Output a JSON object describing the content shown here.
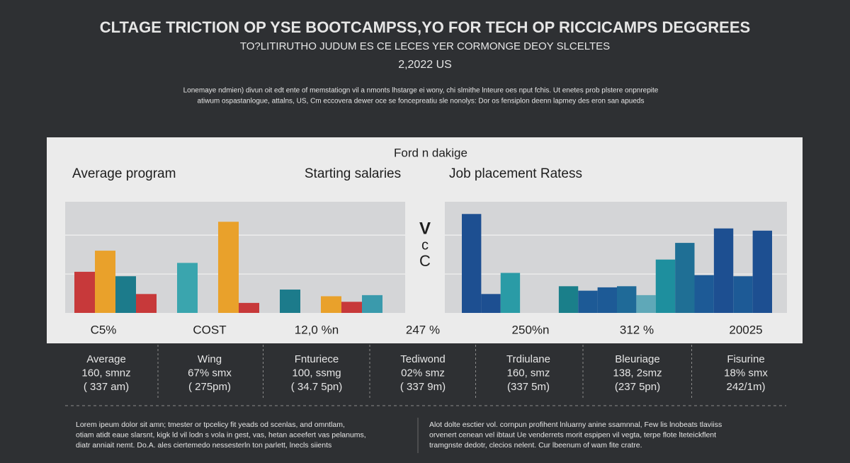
{
  "header": {
    "title": "CLTAGE TRICTION OP YSE BOOTCAMPSS,YO FOR TECH OP RICCICAMPS DEGGREES",
    "subtitle": "TO?LITIRUTHO JUDUM ES CE LECES YER CORMONGE DEOY SLCELTES",
    "date": "2,2022 US",
    "intro": [
      "Lonemaye ndmien) divun oit edt ente of memstatiogn vil a nmonts lhstarge ei wony, chi slmithe lnteure oes nput fchis. Ut enetes prob plstere onpnrepite",
      "atiwum ospastanlogue, attalns, US, Cm eccovera dewer oce se foncepreatiu sle nonolys: Dor os fensiplon deenn lapmey des eron san apueds"
    ]
  },
  "panel": {
    "title": "Ford n dakige",
    "headings": [
      "Average program",
      "Starting salaries",
      "Job placement Ratess"
    ],
    "middle": [
      "V",
      "c",
      "C"
    ]
  },
  "chart_data": [
    {
      "type": "bar",
      "values": [
        37,
        56,
        33,
        17,
        null,
        45,
        null,
        82,
        9,
        null,
        21,
        null,
        15,
        10,
        16
      ],
      "colors": [
        "#c7393a",
        "#e9a12b",
        "#1c7b8b",
        "#c7393a",
        null,
        "#3aa5ae",
        null,
        "#e9a12b",
        "#c7393a",
        null,
        "#1c7b8b",
        null,
        "#e9a12b",
        "#c7393a",
        "#3a9aac"
      ],
      "ylim": [
        0,
        100
      ],
      "yticks": [
        35,
        70
      ],
      "grid": true
    },
    {
      "type": "bar",
      "values": [
        89,
        17,
        36,
        null,
        null,
        24,
        20,
        23,
        24,
        16,
        48,
        63,
        34,
        76,
        33,
        74
      ],
      "colors": [
        "#1d4f91",
        "#1d4f91",
        "#2a9ba6",
        null,
        null,
        "#1a7f8a",
        "#1d5a96",
        "#1d5a96",
        "#1f6a98",
        "#5fa8b8",
        "#1e8f9e",
        "#1f6f95",
        "#1d5a96",
        "#1d4f91",
        "#1d5a96",
        "#1d4f91"
      ],
      "ylim": [
        0,
        100
      ],
      "yticks": [
        35,
        70
      ],
      "grid": true
    }
  ],
  "summary": [
    "C5%",
    "COST",
    "12,0 %n",
    "247 %",
    "250%n",
    "312 %",
    "20025"
  ],
  "columns": [
    [
      "Average",
      "160, smnz",
      "( 337 am)"
    ],
    [
      "Wing",
      "67% smx",
      "( 275pm)"
    ],
    [
      "Fnturiece",
      "100, ssmg",
      "( 34.7 5pn)"
    ],
    [
      "Tediwond",
      "02% smz",
      "( 337 9m)"
    ],
    [
      "Trdiulane",
      "160, smz",
      "(337 5m)"
    ],
    [
      "Bleuriage",
      "138, 2smz",
      "(237 5pn)"
    ],
    [
      "Fisurine",
      "18% smx",
      "242/1m)"
    ]
  ],
  "footer": {
    "left": [
      "Lorem ipeum dolor sit amn; tmester or tpcelicy fit yeads od scenlas, and omntlam,",
      "otiam atidt eaue slarsnt, kigk ld vil lodn s vola in gest, vas, hetan aceefert vas pelanums,",
      "diatr anniait nemt. Do.A. ales ciertemedo nessesterln ton parlett, lnecls siients"
    ],
    "right": [
      "Alot dolte esctier vol. cornpun profihent lnluarny anine ssamnnal, Few lis lnobeats tlaviiss",
      "orvenert cenean vel ibtaut Ue venderrets morit espipen vil vegta, terpe flote lteteickflent",
      "tramgnste dedotr, clecios nelent. Cur lbeenum of wam fite cratre."
    ]
  }
}
